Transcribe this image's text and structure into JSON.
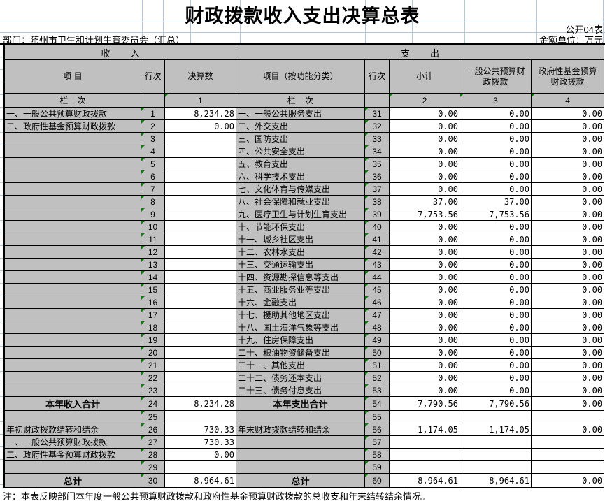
{
  "title": "财政拨款收入支出决算总表",
  "meta": {
    "form_no": "公开04表",
    "department": "部门：随州市卫生和计划生育委员会（汇总）",
    "unit": "金额单位：万元"
  },
  "note": "注：本表反映部门本年度一般公共预算财政拨款和政府性基金预算财政拨款的总收支和年末结转结余情况。",
  "colors": {
    "cell_gray": "#c0c0c0",
    "cell_white": "#ffffff",
    "border_black": "#000000",
    "gridline_blue": "#b3c6da",
    "triangle_green": "#107c10"
  },
  "income": {
    "section_title": "收        入",
    "headers": {
      "item": "项    目",
      "row_no": "行次",
      "amount": "决算数"
    },
    "lanci": {
      "label": "栏    次",
      "blank": "",
      "col1": "1"
    },
    "rows": [
      {
        "label": "一、一般公共预算财政拨款",
        "row": "1",
        "value": "8,234.28"
      },
      {
        "label": "二、政府性基金预算财政拨款",
        "row": "2",
        "value": "0.00"
      },
      {
        "label": "",
        "row": "3",
        "value": ""
      },
      {
        "label": "",
        "row": "4",
        "value": ""
      },
      {
        "label": "",
        "row": "5",
        "value": ""
      },
      {
        "label": "",
        "row": "6",
        "value": ""
      },
      {
        "label": "",
        "row": "7",
        "value": ""
      },
      {
        "label": "",
        "row": "8",
        "value": ""
      },
      {
        "label": "",
        "row": "9",
        "value": ""
      },
      {
        "label": "",
        "row": "10",
        "value": ""
      },
      {
        "label": "",
        "row": "11",
        "value": ""
      },
      {
        "label": "",
        "row": "12",
        "value": ""
      },
      {
        "label": "",
        "row": "13",
        "value": ""
      },
      {
        "label": "",
        "row": "14",
        "value": ""
      },
      {
        "label": "",
        "row": "15",
        "value": ""
      },
      {
        "label": "",
        "row": "16",
        "value": ""
      },
      {
        "label": "",
        "row": "17",
        "value": ""
      },
      {
        "label": "",
        "row": "18",
        "value": ""
      },
      {
        "label": "",
        "row": "19",
        "value": ""
      },
      {
        "label": "",
        "row": "20",
        "value": ""
      },
      {
        "label": "",
        "row": "21",
        "value": ""
      },
      {
        "label": "",
        "row": "22",
        "value": ""
      },
      {
        "label": "",
        "row": "23",
        "value": ""
      },
      {
        "label": "本年收入合计",
        "row": "24",
        "value": "8,234.28",
        "bold": true
      },
      {
        "label": "",
        "row": "25",
        "value": ""
      },
      {
        "label": "年初财政拨款结转和结余",
        "row": "26",
        "value": "730.33"
      },
      {
        "label": "一、一般公共预算财政拨款",
        "row": "27",
        "value": "730.33"
      },
      {
        "label": "二、政府性基金预算财政拨款",
        "row": "28",
        "value": "0.00"
      },
      {
        "label": "",
        "row": "29",
        "value": ""
      },
      {
        "label": "总计",
        "row": "30",
        "value": "8,964.61",
        "bold": true
      }
    ]
  },
  "expenditure": {
    "section_title": "支        出",
    "headers": {
      "item": "项目（按功能分类）",
      "row_no": "行次",
      "subtotal": "小计",
      "general": "一般公共预算财\n政拨款",
      "govfund": "政府性基金预算\n财政拨款"
    },
    "lanci": {
      "label": "栏    次",
      "blank": "",
      "col2": "2",
      "col3": "3",
      "col4": "4"
    },
    "rows": [
      {
        "label": "一、一般公共服务支出",
        "row": "31",
        "subtotal": "0.00",
        "general": "0.00",
        "govfund": "0.00"
      },
      {
        "label": "二、外交支出",
        "row": "32",
        "subtotal": "0.00",
        "general": "0.00",
        "govfund": "0.00"
      },
      {
        "label": "三、国防支出",
        "row": "33",
        "subtotal": "0.00",
        "general": "0.00",
        "govfund": "0.00"
      },
      {
        "label": "四、公共安全支出",
        "row": "34",
        "subtotal": "0.00",
        "general": "0.00",
        "govfund": "0.00"
      },
      {
        "label": "五、教育支出",
        "row": "35",
        "subtotal": "0.00",
        "general": "0.00",
        "govfund": "0.00"
      },
      {
        "label": "六、科学技术支出",
        "row": "36",
        "subtotal": "0.00",
        "general": "0.00",
        "govfund": "0.00"
      },
      {
        "label": "七、文化体育与传媒支出",
        "row": "37",
        "subtotal": "0.00",
        "general": "0.00",
        "govfund": "0.00"
      },
      {
        "label": "八、社会保障和就业支出",
        "row": "38",
        "subtotal": "37.00",
        "general": "37.00",
        "govfund": "0.00"
      },
      {
        "label": "九、医疗卫生与计划生育支出",
        "row": "39",
        "subtotal": "7,753.56",
        "general": "7,753.56",
        "govfund": "0.00"
      },
      {
        "label": "十、节能环保支出",
        "row": "40",
        "subtotal": "0.00",
        "general": "0.00",
        "govfund": "0.00"
      },
      {
        "label": "十一、城乡社区支出",
        "row": "41",
        "subtotal": "0.00",
        "general": "0.00",
        "govfund": "0.00"
      },
      {
        "label": "十二、农林水支出",
        "row": "42",
        "subtotal": "0.00",
        "general": "0.00",
        "govfund": "0.00"
      },
      {
        "label": "十三、交通运输支出",
        "row": "43",
        "subtotal": "0.00",
        "general": "0.00",
        "govfund": "0.00"
      },
      {
        "label": "十四、资源勘探信息等支出",
        "row": "44",
        "subtotal": "0.00",
        "general": "0.00",
        "govfund": "0.00"
      },
      {
        "label": "十五、商业服务业等支出",
        "row": "45",
        "subtotal": "0.00",
        "general": "0.00",
        "govfund": "0.00"
      },
      {
        "label": "十六、金融支出",
        "row": "46",
        "subtotal": "0.00",
        "general": "0.00",
        "govfund": "0.00"
      },
      {
        "label": "十七、援助其他地区支出",
        "row": "47",
        "subtotal": "0.00",
        "general": "0.00",
        "govfund": "0.00"
      },
      {
        "label": "十八、国土海洋气象等支出",
        "row": "48",
        "subtotal": "0.00",
        "general": "0.00",
        "govfund": "0.00"
      },
      {
        "label": "十九、住房保障支出",
        "row": "49",
        "subtotal": "0.00",
        "general": "0.00",
        "govfund": "0.00"
      },
      {
        "label": "二十、粮油物资储备支出",
        "row": "50",
        "subtotal": "0.00",
        "general": "0.00",
        "govfund": "0.00"
      },
      {
        "label": "二十一、其他支出",
        "row": "51",
        "subtotal": "0.00",
        "general": "0.00",
        "govfund": "0.00"
      },
      {
        "label": "二十二、债务还本支出",
        "row": "52",
        "subtotal": "0.00",
        "general": "0.00",
        "govfund": "0.00"
      },
      {
        "label": "二十三、债务付息支出",
        "row": "53",
        "subtotal": "0.00",
        "general": "0.00",
        "govfund": "0.00"
      },
      {
        "label": "本年支出合计",
        "row": "54",
        "subtotal": "7,790.56",
        "general": "7,790.56",
        "govfund": "0.00",
        "bold": true
      },
      {
        "label": "",
        "row": "55",
        "subtotal": "",
        "general": "",
        "govfund": ""
      },
      {
        "label": "年末财政拨款结转和结余",
        "row": "56",
        "subtotal": "1,174.05",
        "general": "1,174.05",
        "govfund": "0.00"
      },
      {
        "label": "",
        "row": "57",
        "subtotal": "",
        "general": "",
        "govfund": ""
      },
      {
        "label": "",
        "row": "58",
        "subtotal": "",
        "general": "",
        "govfund": ""
      },
      {
        "label": "",
        "row": "59",
        "subtotal": "",
        "general": "",
        "govfund": ""
      },
      {
        "label": "总计",
        "row": "60",
        "subtotal": "8,964.61",
        "general": "8,964.61",
        "govfund": "0.00",
        "bold": true
      }
    ]
  }
}
